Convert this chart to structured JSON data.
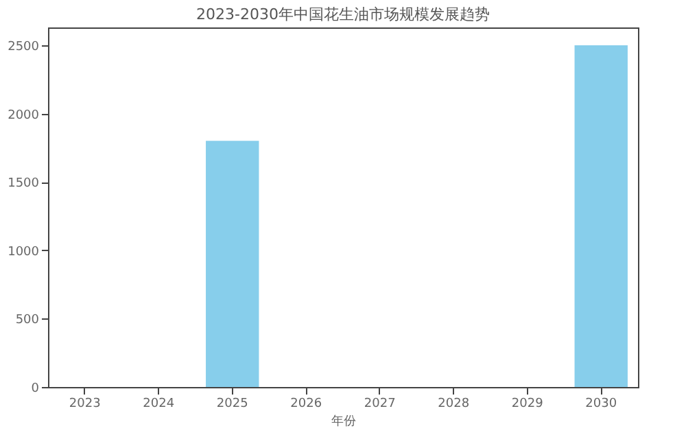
{
  "chart_data": {
    "type": "bar",
    "title": "2023-2030年中国花生油市场规模发展趋势",
    "xlabel": "年份",
    "categories": [
      "2023",
      "2024",
      "2025",
      "2026",
      "2027",
      "2028",
      "2029",
      "2030"
    ],
    "values": [
      null,
      null,
      1800,
      null,
      null,
      null,
      null,
      2500
    ],
    "color": "#87ceeb",
    "ylim": [
      0,
      2630
    ],
    "yticks": [
      0,
      500,
      1000,
      1500,
      2000,
      2500
    ],
    "grid": false
  }
}
